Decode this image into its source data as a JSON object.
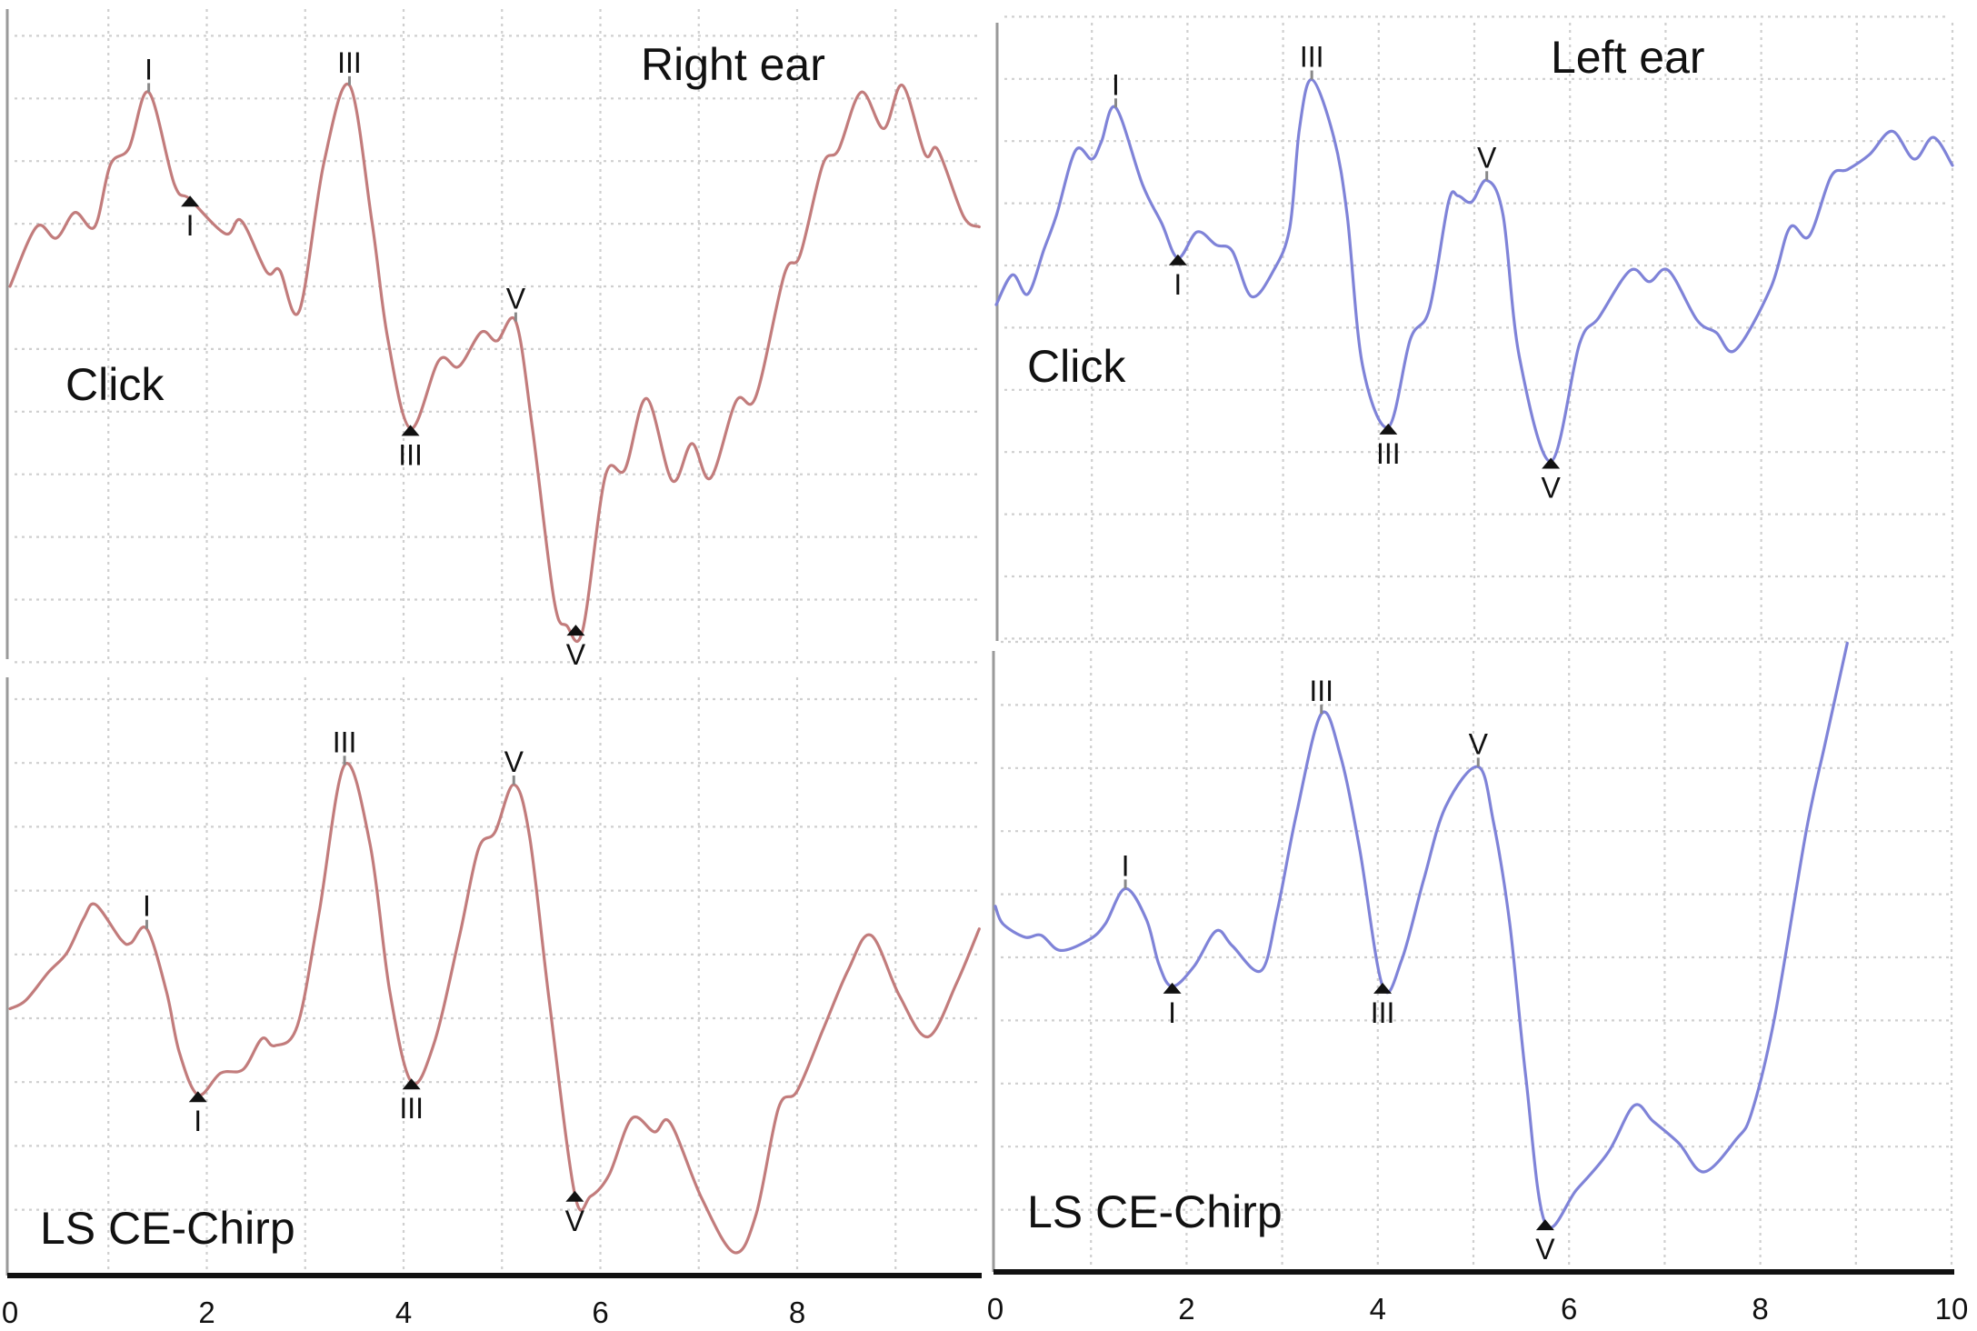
{
  "chart_data": [
    {
      "type": "line",
      "ear_label": "Right ear",
      "stimulus_label": "Click",
      "color": "#c27c7c",
      "xlim": [
        0,
        9.9
      ],
      "x_ticks": [],
      "y_units": "grid divisions (unlabeled)",
      "grid": true,
      "points": [
        [
          0,
          0
        ],
        [
          0.27,
          0.95
        ],
        [
          0.47,
          0.77
        ],
        [
          0.66,
          1.18
        ],
        [
          0.86,
          0.95
        ],
        [
          1.02,
          1.94
        ],
        [
          1.21,
          2.21
        ],
        [
          1.41,
          3.1
        ],
        [
          1.67,
          1.63
        ],
        [
          1.83,
          1.39
        ],
        [
          2.19,
          0.84
        ],
        [
          2.35,
          1.05
        ],
        [
          2.61,
          0.23
        ],
        [
          2.74,
          0.26
        ],
        [
          2.94,
          -0.39
        ],
        [
          3.19,
          1.97
        ],
        [
          3.45,
          3.21
        ],
        [
          3.68,
          1.01
        ],
        [
          3.84,
          -0.84
        ],
        [
          4.07,
          -2.27
        ],
        [
          4.36,
          -1.18
        ],
        [
          4.56,
          -1.28
        ],
        [
          4.79,
          -0.73
        ],
        [
          4.95,
          -0.87
        ],
        [
          5.14,
          -0.56
        ],
        [
          5.31,
          -2.27
        ],
        [
          5.53,
          -5.01
        ],
        [
          5.66,
          -5.42
        ],
        [
          5.82,
          -5.49
        ],
        [
          6.05,
          -3.03
        ],
        [
          6.25,
          -2.92
        ],
        [
          6.47,
          -1.79
        ],
        [
          6.73,
          -3.1
        ],
        [
          6.93,
          -2.51
        ],
        [
          7.12,
          -3.06
        ],
        [
          7.38,
          -1.83
        ],
        [
          7.58,
          -1.76
        ],
        [
          7.87,
          0.19
        ],
        [
          8.03,
          0.5
        ],
        [
          8.26,
          1.94
        ],
        [
          8.42,
          2.18
        ],
        [
          8.65,
          3.1
        ],
        [
          8.88,
          2.52
        ],
        [
          9.07,
          3.21
        ],
        [
          9.3,
          2.11
        ],
        [
          9.43,
          2.18
        ],
        [
          9.69,
          1.12
        ],
        [
          9.85,
          0.95
        ]
      ],
      "markers": [
        {
          "label": "I",
          "ms": 1.41,
          "kind": "peak"
        },
        {
          "label": "I",
          "ms": 1.83,
          "kind": "trough"
        },
        {
          "label": "III",
          "ms": 3.45,
          "kind": "peak"
        },
        {
          "label": "III",
          "ms": 4.07,
          "kind": "trough"
        },
        {
          "label": "V",
          "ms": 5.14,
          "kind": "peak"
        },
        {
          "label": "V",
          "ms": 5.75,
          "kind": "trough"
        }
      ]
    },
    {
      "type": "line",
      "stimulus_label": "LS CE-Chirp",
      "color": "#c27c7c",
      "xlim": [
        0,
        9.9
      ],
      "x_ticks": [
        "0",
        "2",
        "4",
        "6",
        "8"
      ],
      "y_units": "grid divisions (unlabeled)",
      "grid": true,
      "points": [
        [
          0,
          0.15
        ],
        [
          0.16,
          0.28
        ],
        [
          0.39,
          0.72
        ],
        [
          0.58,
          1.03
        ],
        [
          0.75,
          1.57
        ],
        [
          0.87,
          1.78
        ],
        [
          1.13,
          1.23
        ],
        [
          1.23,
          1.18
        ],
        [
          1.39,
          1.4
        ],
        [
          1.59,
          0.42
        ],
        [
          1.72,
          -0.53
        ],
        [
          1.91,
          -1.2
        ],
        [
          2.14,
          -0.86
        ],
        [
          2.37,
          -0.8
        ],
        [
          2.56,
          -0.32
        ],
        [
          2.69,
          -0.43
        ],
        [
          2.92,
          -0.12
        ],
        [
          3.14,
          1.64
        ],
        [
          3.4,
          3.97
        ],
        [
          3.66,
          2.72
        ],
        [
          3.86,
          0.42
        ],
        [
          4.08,
          -1.0
        ],
        [
          4.31,
          -0.39
        ],
        [
          4.57,
          1.3
        ],
        [
          4.76,
          2.65
        ],
        [
          4.93,
          2.92
        ],
        [
          5.12,
          3.66
        ],
        [
          5.28,
          2.85
        ],
        [
          5.48,
          0.28
        ],
        [
          5.74,
          -2.76
        ],
        [
          5.9,
          -2.79
        ],
        [
          6.09,
          -2.45
        ],
        [
          6.32,
          -1.57
        ],
        [
          6.55,
          -1.78
        ],
        [
          6.71,
          -1.64
        ],
        [
          7.03,
          -2.82
        ],
        [
          7.36,
          -3.67
        ],
        [
          7.58,
          -3.09
        ],
        [
          7.81,
          -1.41
        ],
        [
          8.0,
          -1.14
        ],
        [
          8.26,
          -0.19
        ],
        [
          8.52,
          0.76
        ],
        [
          8.75,
          1.3
        ],
        [
          9.04,
          0.35
        ],
        [
          9.33,
          -0.29
        ],
        [
          9.62,
          0.55
        ],
        [
          9.85,
          1.4
        ]
      ],
      "markers": [
        {
          "label": "I",
          "ms": 1.39,
          "kind": "peak"
        },
        {
          "label": "I",
          "ms": 1.91,
          "kind": "trough"
        },
        {
          "label": "III",
          "ms": 3.4,
          "kind": "peak"
        },
        {
          "label": "III",
          "ms": 4.08,
          "kind": "trough"
        },
        {
          "label": "V",
          "ms": 5.12,
          "kind": "peak"
        },
        {
          "label": "V",
          "ms": 5.74,
          "kind": "trough"
        }
      ]
    },
    {
      "type": "line",
      "ear_label": "Left ear",
      "stimulus_label": "Click",
      "color": "#7f83d8",
      "xlim": [
        0,
        10
      ],
      "x_ticks": [],
      "y_units": "grid divisions (unlabeled)",
      "grid": true,
      "points": [
        [
          0,
          -0.63
        ],
        [
          0.17,
          -0.15
        ],
        [
          0.33,
          -0.46
        ],
        [
          0.5,
          0.26
        ],
        [
          0.63,
          0.81
        ],
        [
          0.83,
          1.85
        ],
        [
          1.0,
          1.71
        ],
        [
          1.1,
          1.99
        ],
        [
          1.25,
          2.54
        ],
        [
          1.53,
          1.3
        ],
        [
          1.73,
          0.68
        ],
        [
          1.9,
          0.12
        ],
        [
          2.1,
          0.54
        ],
        [
          2.3,
          0.33
        ],
        [
          2.47,
          0.23
        ],
        [
          2.67,
          -0.5
        ],
        [
          2.9,
          -0.08
        ],
        [
          3.07,
          0.61
        ],
        [
          3.17,
          2.19
        ],
        [
          3.3,
          2.99
        ],
        [
          3.53,
          2.06
        ],
        [
          3.67,
          0.81
        ],
        [
          3.83,
          -1.6
        ],
        [
          4.1,
          -2.6
        ],
        [
          4.33,
          -1.19
        ],
        [
          4.53,
          -0.7
        ],
        [
          4.73,
          1.02
        ],
        [
          4.83,
          1.12
        ],
        [
          4.97,
          1.02
        ],
        [
          5.13,
          1.37
        ],
        [
          5.3,
          0.81
        ],
        [
          5.47,
          -1.46
        ],
        [
          5.8,
          -3.15
        ],
        [
          6.1,
          -1.26
        ],
        [
          6.3,
          -0.84
        ],
        [
          6.63,
          -0.08
        ],
        [
          6.83,
          -0.26
        ],
        [
          7.03,
          -0.08
        ],
        [
          7.33,
          -0.88
        ],
        [
          7.53,
          -1.08
        ],
        [
          7.73,
          -1.36
        ],
        [
          8.1,
          -0.36
        ],
        [
          8.3,
          0.61
        ],
        [
          8.5,
          0.47
        ],
        [
          8.73,
          1.43
        ],
        [
          8.9,
          1.54
        ],
        [
          9.13,
          1.78
        ],
        [
          9.37,
          2.16
        ],
        [
          9.6,
          1.71
        ],
        [
          9.8,
          2.06
        ],
        [
          10.0,
          1.61
        ]
      ],
      "markers": [
        {
          "label": "I",
          "ms": 1.25,
          "kind": "peak"
        },
        {
          "label": "I",
          "ms": 1.9,
          "kind": "trough"
        },
        {
          "label": "III",
          "ms": 3.3,
          "kind": "peak"
        },
        {
          "label": "III",
          "ms": 4.1,
          "kind": "trough"
        },
        {
          "label": "V",
          "ms": 5.13,
          "kind": "peak"
        },
        {
          "label": "V",
          "ms": 5.8,
          "kind": "trough"
        }
      ]
    },
    {
      "type": "line",
      "stimulus_label": "LS CE-Chirp",
      "color": "#7f83d8",
      "xlim": [
        0,
        10
      ],
      "x_ticks": [
        "0",
        "2",
        "4",
        "6",
        "8",
        "10"
      ],
      "y_units": "grid divisions (unlabeled)",
      "grid": true,
      "points": [
        [
          0,
          0.81
        ],
        [
          0.08,
          0.53
        ],
        [
          0.31,
          0.32
        ],
        [
          0.48,
          0.35
        ],
        [
          0.68,
          0.11
        ],
        [
          0.98,
          0.28
        ],
        [
          1.15,
          0.53
        ],
        [
          1.36,
          1.09
        ],
        [
          1.58,
          0.6
        ],
        [
          1.71,
          -0.11
        ],
        [
          1.85,
          -0.46
        ],
        [
          2.08,
          -0.14
        ],
        [
          2.31,
          0.42
        ],
        [
          2.48,
          0.18
        ],
        [
          2.78,
          -0.21
        ],
        [
          2.95,
          0.74
        ],
        [
          3.15,
          2.28
        ],
        [
          3.41,
          3.86
        ],
        [
          3.61,
          3.19
        ],
        [
          3.81,
          1.72
        ],
        [
          4.05,
          -0.46
        ],
        [
          4.25,
          -0.04
        ],
        [
          4.48,
          1.23
        ],
        [
          4.71,
          2.39
        ],
        [
          5.05,
          3.02
        ],
        [
          5.21,
          2.14
        ],
        [
          5.38,
          0.53
        ],
        [
          5.55,
          -1.93
        ],
        [
          5.75,
          -4.21
        ],
        [
          6.08,
          -3.68
        ],
        [
          6.41,
          -3.09
        ],
        [
          6.68,
          -2.35
        ],
        [
          6.88,
          -2.6
        ],
        [
          7.15,
          -2.95
        ],
        [
          7.41,
          -3.4
        ],
        [
          7.75,
          -2.88
        ],
        [
          7.91,
          -2.46
        ],
        [
          8.15,
          -0.95
        ],
        [
          8.48,
          2.0
        ],
        [
          8.68,
          3.4
        ],
        [
          8.91,
          4.98
        ]
      ],
      "markers": [
        {
          "label": "I",
          "ms": 1.36,
          "kind": "peak"
        },
        {
          "label": "I",
          "ms": 1.85,
          "kind": "trough"
        },
        {
          "label": "III",
          "ms": 3.41,
          "kind": "peak"
        },
        {
          "label": "III",
          "ms": 4.05,
          "kind": "trough"
        },
        {
          "label": "V",
          "ms": 5.05,
          "kind": "peak"
        },
        {
          "label": "V",
          "ms": 5.75,
          "kind": "trough"
        }
      ]
    }
  ]
}
